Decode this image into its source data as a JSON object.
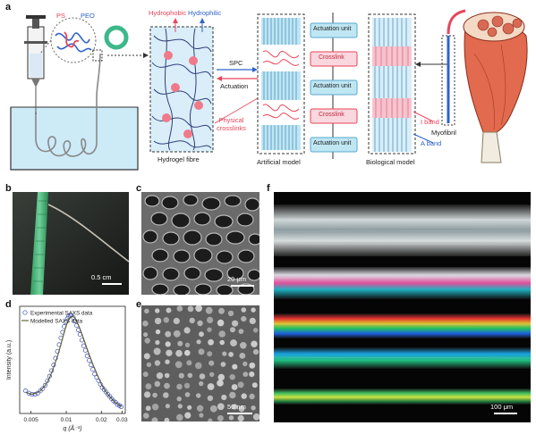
{
  "panels": {
    "a": "a",
    "b": "b",
    "c": "c",
    "d": "d",
    "e": "e",
    "f": "f"
  },
  "panel_a": {
    "ps": "PS",
    "peo": "PEO",
    "hydrophobic": "Hydrophobic",
    "hydrophilic": "Hydrophilic",
    "spc": "SPC",
    "actuation": "Actuation",
    "physical_crosslinks_line1": "Physical",
    "physical_crosslinks_line2": "crosslinks",
    "hydrogel_fibre": "Hydrogel fibre",
    "artificial_model": "Artificial model",
    "biological_model": "Biological model",
    "actuation_unit": "Actuation unit",
    "crosslink": "Crosslink",
    "myofibril": "Myofibril",
    "i_band": "I band",
    "a_band": "A band",
    "colors": {
      "ps": "#e8455a",
      "peo": "#2f63c9",
      "unit_fill": "#bfe6f3",
      "crosslink_fill": "#f9d7de"
    }
  },
  "panel_b": {
    "scale": "0.5 cm"
  },
  "panel_c": {
    "scale": "20 μm"
  },
  "panel_e": {
    "scale": "50 nm"
  },
  "panel_f": {
    "scale": "100 μm"
  },
  "chart_data": {
    "type": "scatter",
    "xlabel": "q (Å⁻¹)",
    "ylabel": "Intensity (a.u.)",
    "xscale": "log",
    "xlim": [
      0.004,
      0.032
    ],
    "xticks": [
      "0.005",
      "0.01",
      "0.02",
      "0.03"
    ],
    "xtick_values": [
      0.005,
      0.01,
      0.02,
      0.03
    ],
    "legend_placement": "top-left",
    "series": [
      {
        "name": "Experimental SAXS data",
        "marker": "open-circle",
        "color": "#3b4fb8",
        "x": [
          0.0045,
          0.0048,
          0.0051,
          0.0054,
          0.0057,
          0.006,
          0.0063,
          0.0066,
          0.0069,
          0.0072,
          0.0075,
          0.0078,
          0.0081,
          0.0084,
          0.0087,
          0.009,
          0.0093,
          0.0096,
          0.0099,
          0.0102,
          0.0105,
          0.0108,
          0.0111,
          0.0115,
          0.0119,
          0.0123,
          0.0127,
          0.0131,
          0.0136,
          0.0141,
          0.0146,
          0.0151,
          0.0157,
          0.0163,
          0.0169,
          0.0175,
          0.0182,
          0.0189,
          0.0196,
          0.0203,
          0.0211,
          0.0219,
          0.0227,
          0.0236,
          0.0245,
          0.0254,
          0.0264,
          0.0274,
          0.0285,
          0.0295
        ],
        "y": [
          0.3,
          0.28,
          0.27,
          0.27,
          0.28,
          0.3,
          0.32,
          0.35,
          0.39,
          0.43,
          0.48,
          0.53,
          0.59,
          0.65,
          0.71,
          0.77,
          0.82,
          0.87,
          0.91,
          0.94,
          0.96,
          0.97,
          0.97,
          0.95,
          0.92,
          0.88,
          0.84,
          0.8,
          0.75,
          0.7,
          0.66,
          0.61,
          0.57,
          0.53,
          0.49,
          0.45,
          0.42,
          0.39,
          0.36,
          0.33,
          0.31,
          0.29,
          0.27,
          0.25,
          0.23,
          0.21,
          0.2,
          0.18,
          0.17,
          0.16
        ]
      },
      {
        "name": "Modelled SAXS data",
        "marker": "line",
        "color": "#5a5a2a",
        "x": [
          0.0045,
          0.005,
          0.0055,
          0.006,
          0.0065,
          0.007,
          0.0075,
          0.008,
          0.0085,
          0.009,
          0.0095,
          0.01,
          0.0105,
          0.011,
          0.0115,
          0.012,
          0.013,
          0.014,
          0.015,
          0.016,
          0.017,
          0.018,
          0.019,
          0.02,
          0.021,
          0.022,
          0.023,
          0.024,
          0.025,
          0.026,
          0.027,
          0.028,
          0.0295
        ],
        "y": [
          0.29,
          0.27,
          0.28,
          0.3,
          0.34,
          0.39,
          0.46,
          0.54,
          0.62,
          0.71,
          0.8,
          0.88,
          0.93,
          0.96,
          0.96,
          0.94,
          0.86,
          0.77,
          0.68,
          0.6,
          0.53,
          0.47,
          0.41,
          0.36,
          0.32,
          0.29,
          0.26,
          0.24,
          0.22,
          0.2,
          0.19,
          0.18,
          0.16
        ]
      }
    ]
  }
}
